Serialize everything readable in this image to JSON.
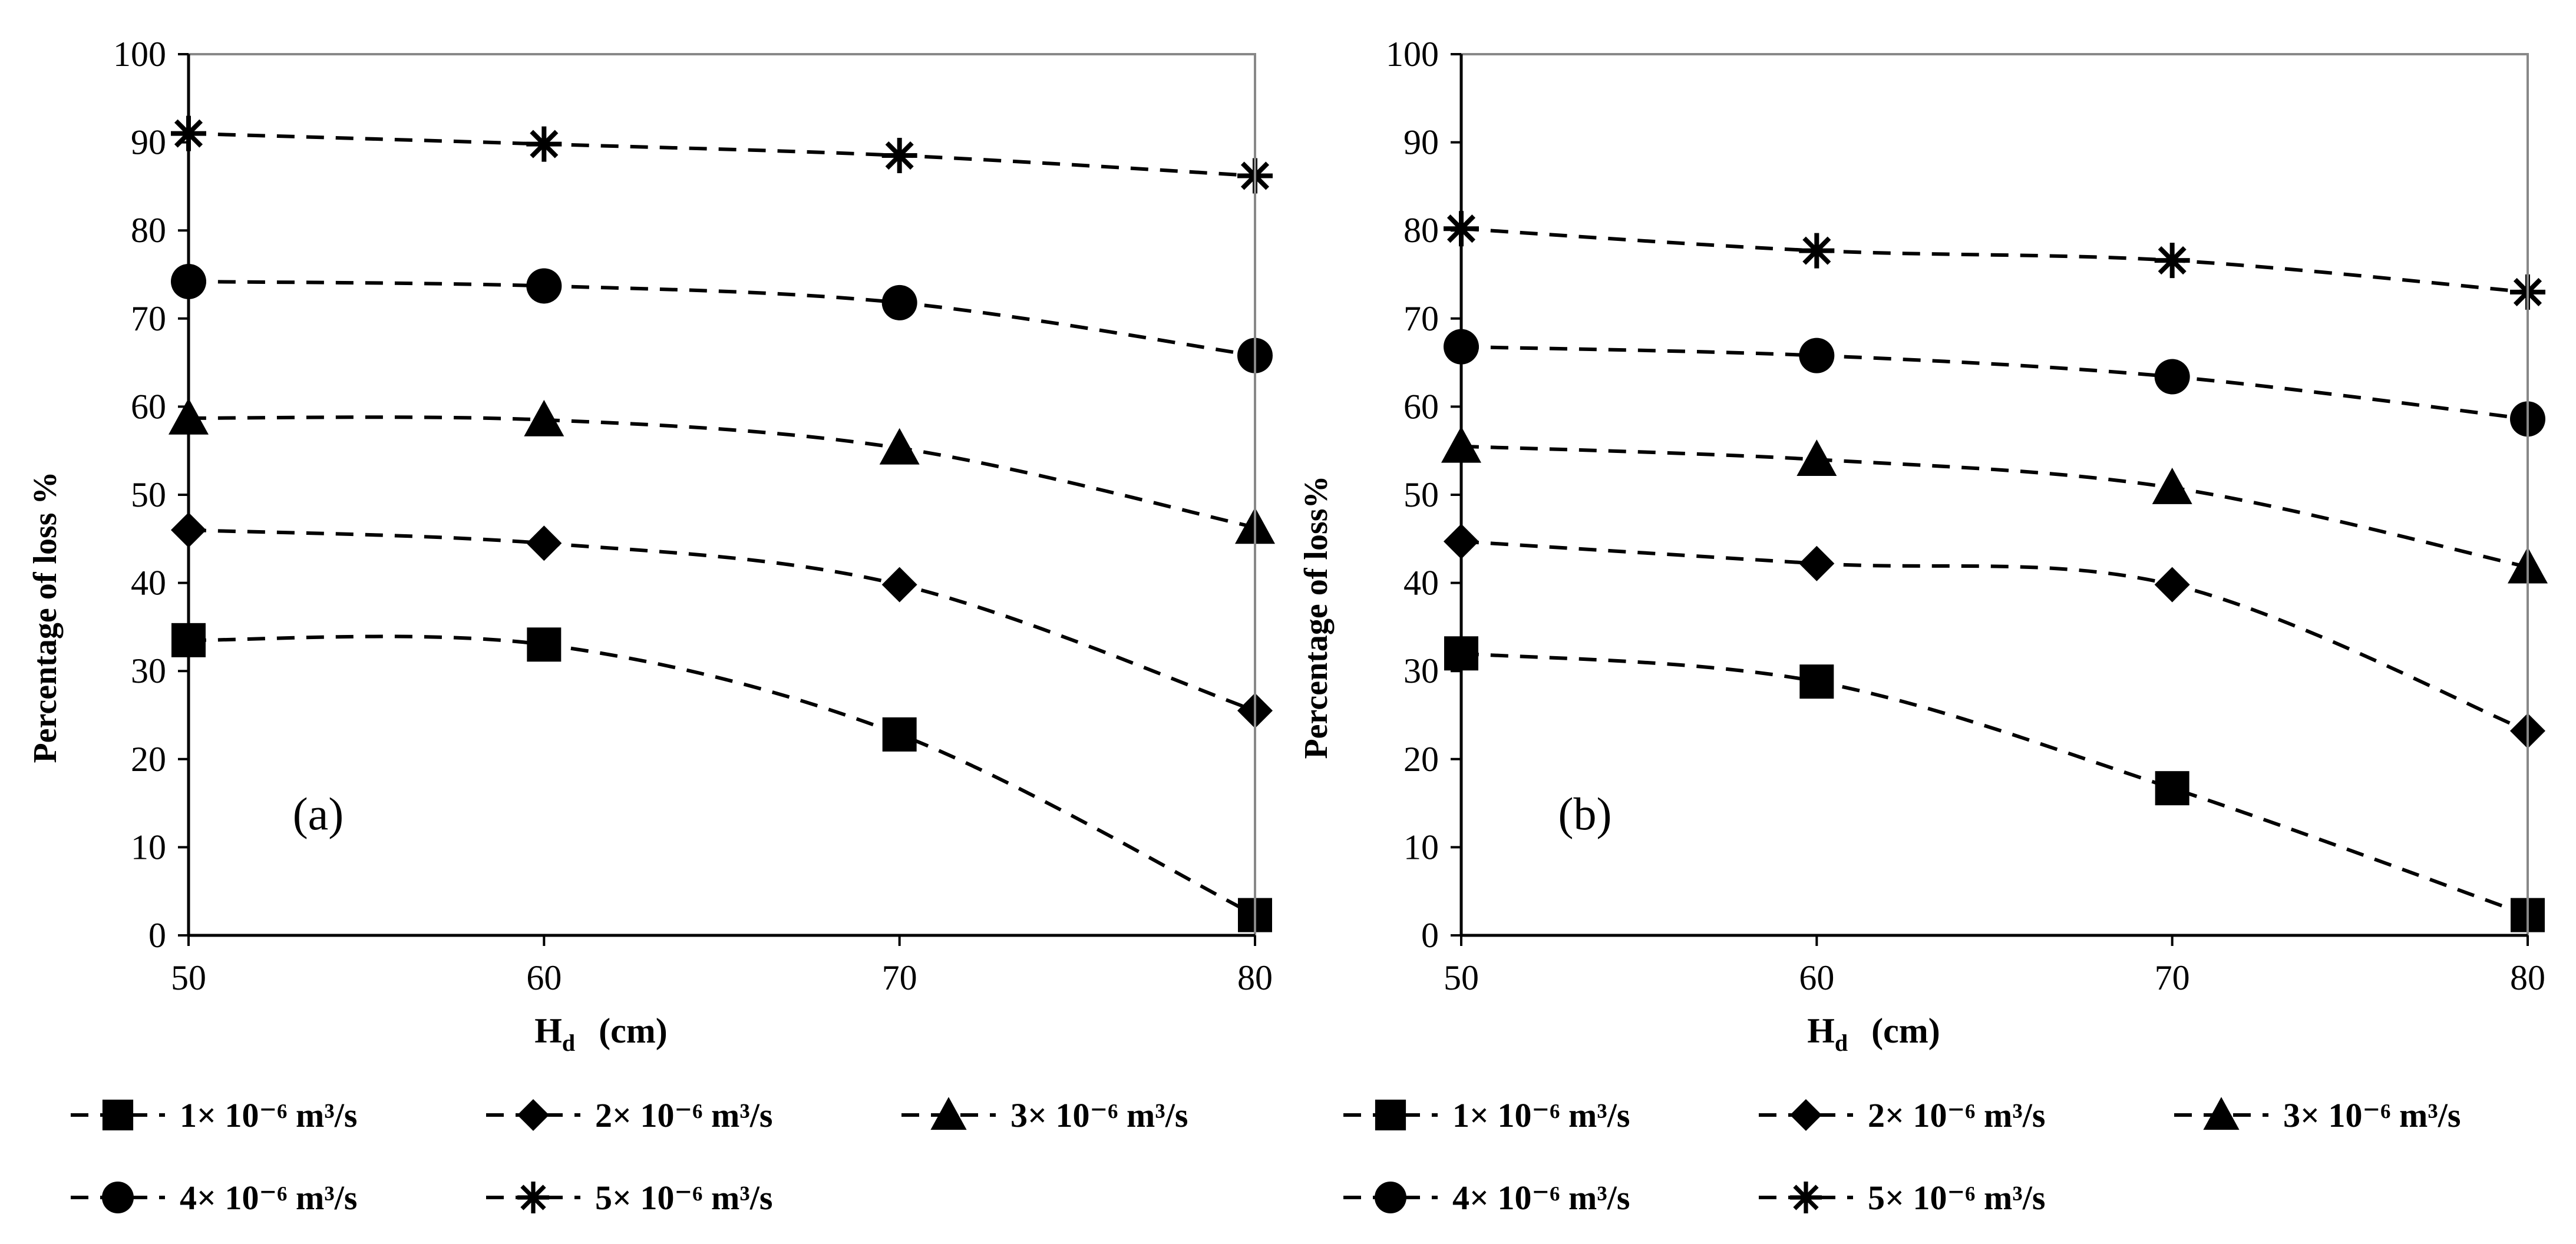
{
  "chart_data": [
    {
      "panel_label": "(a)",
      "type": "line",
      "title": "",
      "xlabel_main": "H",
      "xlabel_sub": "d",
      "xlabel_unit": "(cm)",
      "ylabel": "Percentage of loss %",
      "x": [
        50,
        60,
        70,
        80
      ],
      "x_ticks": [
        "50",
        "60",
        "70",
        "80"
      ],
      "y_ticks": [
        "0",
        "10",
        "20",
        "30",
        "40",
        "50",
        "60",
        "70",
        "80",
        "90",
        "100"
      ],
      "xlim": [
        50,
        80
      ],
      "ylim": [
        0,
        100
      ],
      "grid": false,
      "series": [
        {
          "name": "1× 10⁻⁶ m³/s",
          "marker": "square",
          "values": [
            33.5,
            33.0,
            22.8,
            2.3
          ]
        },
        {
          "name": "2× 10⁻⁶ m³/s",
          "marker": "diamond",
          "values": [
            46.0,
            44.5,
            39.8,
            25.5
          ]
        },
        {
          "name": "3× 10⁻⁶ m³/s",
          "marker": "triangle",
          "values": [
            58.7,
            58.5,
            55.3,
            46.3
          ]
        },
        {
          "name": "4× 10⁻⁶ m³/s",
          "marker": "circle",
          "values": [
            74.2,
            73.7,
            71.8,
            65.8
          ]
        },
        {
          "name": "5× 10⁻⁶ m³/s",
          "marker": "star",
          "values": [
            91.0,
            89.8,
            88.5,
            86.2
          ]
        }
      ]
    },
    {
      "panel_label": "(b)",
      "type": "line",
      "title": "",
      "xlabel_main": "H",
      "xlabel_sub": "d",
      "xlabel_unit": "(cm)",
      "ylabel": "Percentage of loss%",
      "x": [
        50,
        60,
        70,
        80
      ],
      "x_ticks": [
        "50",
        "60",
        "70",
        "80"
      ],
      "y_ticks": [
        "0",
        "10",
        "20",
        "30",
        "40",
        "50",
        "60",
        "70",
        "80",
        "90",
        "100"
      ],
      "xlim": [
        50,
        80
      ],
      "ylim": [
        0,
        100
      ],
      "grid": false,
      "series": [
        {
          "name": "1× 10⁻⁶ m³/s",
          "marker": "square",
          "values": [
            32.0,
            28.8,
            16.7,
            2.3
          ]
        },
        {
          "name": "2× 10⁻⁶ m³/s",
          "marker": "diamond",
          "values": [
            44.7,
            42.2,
            39.8,
            23.2
          ]
        },
        {
          "name": "3× 10⁻⁶ m³/s",
          "marker": "triangle",
          "values": [
            55.5,
            54.0,
            50.8,
            41.8
          ]
        },
        {
          "name": "4× 10⁻⁶ m³/s",
          "marker": "circle",
          "values": [
            66.8,
            65.8,
            63.4,
            58.6
          ]
        },
        {
          "name": "5× 10⁻⁶ m³/s",
          "marker": "star",
          "values": [
            80.2,
            77.7,
            76.6,
            73.0
          ]
        }
      ]
    }
  ]
}
